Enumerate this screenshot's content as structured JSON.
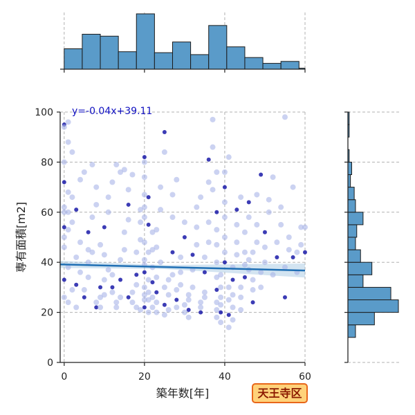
{
  "chart_data": {
    "type": "scatter",
    "title": "",
    "xlabel": "築年数[年]",
    "ylabel": "専有面積[m2]",
    "xlim": [
      -1,
      60
    ],
    "ylim": [
      0,
      100
    ],
    "xticks": [
      0,
      20,
      40,
      60
    ],
    "yticks": [
      0,
      20,
      40,
      60,
      80,
      100
    ],
    "grid": true,
    "regression": {
      "label": "y=-0.04x+39.11",
      "slope": -0.04,
      "intercept": 39.11
    },
    "badge": "天王寺区",
    "colors": {
      "points_light": "#a9b4e8",
      "points_dark": "#1a1aa8",
      "line": "#1f6fb4",
      "band": "#9ec4e0",
      "hist": "#5a9bc9",
      "badge_fill": "#ffd27a",
      "badge_border": "#e8661a"
    },
    "x_histogram": {
      "bin_edges": [
        0,
        4.5,
        9,
        13.5,
        18,
        22.5,
        27,
        31.5,
        36,
        40.5,
        45,
        49.5,
        54,
        58.5,
        60
      ],
      "counts": [
        21,
        36,
        34,
        18,
        57,
        17,
        28,
        15,
        45,
        23,
        12,
        6,
        8,
        1
      ]
    },
    "y_histogram": {
      "bin_edges": [
        10,
        15,
        20,
        25,
        30,
        35,
        40,
        45,
        50,
        55,
        60,
        65,
        70,
        75,
        80,
        85,
        90,
        95,
        100
      ],
      "counts": [
        6,
        21,
        40,
        34,
        12,
        19,
        10,
        6,
        7,
        12,
        6,
        5,
        2,
        3,
        1,
        0,
        1,
        1
      ]
    },
    "points": [
      [
        0,
        95
      ],
      [
        1,
        96
      ],
      [
        0,
        94
      ],
      [
        1,
        88
      ],
      [
        0,
        80
      ],
      [
        0,
        72
      ],
      [
        1,
        68
      ],
      [
        0,
        62
      ],
      [
        0,
        60
      ],
      [
        1,
        60
      ],
      [
        0,
        54
      ],
      [
        1,
        53
      ],
      [
        0,
        50
      ],
      [
        0,
        46
      ],
      [
        1,
        38
      ],
      [
        0,
        33
      ],
      [
        0,
        26
      ],
      [
        1,
        24
      ],
      [
        3,
        22
      ],
      [
        2,
        29
      ],
      [
        3,
        31
      ],
      [
        4,
        36
      ],
      [
        3,
        42
      ],
      [
        4,
        48
      ],
      [
        2,
        56
      ],
      [
        3,
        61
      ],
      [
        2,
        66
      ],
      [
        4,
        73
      ],
      [
        5,
        76
      ],
      [
        2,
        84
      ],
      [
        5,
        26
      ],
      [
        5,
        29
      ],
      [
        6,
        34
      ],
      [
        6,
        40
      ],
      [
        7,
        44
      ],
      [
        6,
        52
      ],
      [
        7,
        58
      ],
      [
        8,
        63
      ],
      [
        8,
        70
      ],
      [
        7,
        79
      ],
      [
        8,
        22
      ],
      [
        8,
        24
      ],
      [
        9,
        22
      ],
      [
        9,
        26
      ],
      [
        10,
        27
      ],
      [
        9,
        30
      ],
      [
        10,
        33
      ],
      [
        11,
        37
      ],
      [
        10,
        43
      ],
      [
        9,
        47
      ],
      [
        10,
        54
      ],
      [
        11,
        60
      ],
      [
        11,
        66
      ],
      [
        12,
        72
      ],
      [
        13,
        79
      ],
      [
        12,
        30
      ],
      [
        12,
        28
      ],
      [
        13,
        24
      ],
      [
        13,
        22
      ],
      [
        14,
        26
      ],
      [
        14,
        33
      ],
      [
        14,
        41
      ],
      [
        15,
        45
      ],
      [
        15,
        52
      ],
      [
        16,
        57
      ],
      [
        16,
        63
      ],
      [
        16,
        69
      ],
      [
        17,
        75
      ],
      [
        15,
        77
      ],
      [
        14,
        76
      ],
      [
        16,
        26
      ],
      [
        17,
        28
      ],
      [
        18,
        31
      ],
      [
        17,
        24
      ],
      [
        18,
        22
      ],
      [
        18,
        35
      ],
      [
        18,
        44
      ],
      [
        19,
        49
      ],
      [
        19,
        56
      ],
      [
        19,
        61
      ],
      [
        20,
        82
      ],
      [
        20,
        80
      ],
      [
        20,
        74
      ],
      [
        20,
        67
      ],
      [
        20,
        62
      ],
      [
        21,
        55
      ],
      [
        20,
        48
      ],
      [
        21,
        44
      ],
      [
        20,
        41
      ],
      [
        20,
        39
      ],
      [
        20,
        36
      ],
      [
        21,
        33
      ],
      [
        20,
        30
      ],
      [
        20,
        27
      ],
      [
        21,
        25
      ],
      [
        20,
        22
      ],
      [
        19,
        21
      ],
      [
        21,
        20
      ],
      [
        20,
        25
      ],
      [
        21,
        28
      ],
      [
        21,
        66
      ],
      [
        20,
        58
      ],
      [
        22,
        52
      ],
      [
        22,
        45
      ],
      [
        22,
        38
      ],
      [
        22,
        32
      ],
      [
        22,
        26
      ],
      [
        22,
        22
      ],
      [
        23,
        20
      ],
      [
        23,
        24
      ],
      [
        23,
        28
      ],
      [
        23,
        34
      ],
      [
        23,
        46
      ],
      [
        23,
        53
      ],
      [
        24,
        61
      ],
      [
        25,
        92
      ],
      [
        25,
        84
      ],
      [
        24,
        70
      ],
      [
        24,
        40
      ],
      [
        25,
        30
      ],
      [
        25,
        23
      ],
      [
        25,
        19
      ],
      [
        26,
        21
      ],
      [
        26,
        27
      ],
      [
        26,
        33
      ],
      [
        27,
        44
      ],
      [
        27,
        58
      ],
      [
        27,
        67
      ],
      [
        28,
        73
      ],
      [
        28,
        22
      ],
      [
        28,
        25
      ],
      [
        28,
        29
      ],
      [
        29,
        31
      ],
      [
        29,
        36
      ],
      [
        29,
        42
      ],
      [
        30,
        50
      ],
      [
        30,
        56
      ],
      [
        30,
        20
      ],
      [
        30,
        23
      ],
      [
        31,
        18
      ],
      [
        31,
        21
      ],
      [
        31,
        25
      ],
      [
        31,
        27
      ],
      [
        32,
        30
      ],
      [
        32,
        37
      ],
      [
        32,
        43
      ],
      [
        33,
        47
      ],
      [
        33,
        54
      ],
      [
        33,
        62
      ],
      [
        34,
        66
      ],
      [
        34,
        20
      ],
      [
        34,
        22
      ],
      [
        34,
        24
      ],
      [
        35,
        26
      ],
      [
        35,
        28
      ],
      [
        35,
        36
      ],
      [
        35,
        42
      ],
      [
        36,
        48
      ],
      [
        36,
        56
      ],
      [
        36,
        72
      ],
      [
        36,
        81
      ],
      [
        37,
        97
      ],
      [
        37,
        86
      ],
      [
        38,
        76
      ],
      [
        37,
        69
      ],
      [
        38,
        60
      ],
      [
        38,
        53
      ],
      [
        38,
        47
      ],
      [
        38,
        40
      ],
      [
        38,
        34
      ],
      [
        38,
        29
      ],
      [
        38,
        24
      ],
      [
        38,
        21
      ],
      [
        38,
        18
      ],
      [
        39,
        16
      ],
      [
        39,
        20
      ],
      [
        39,
        23
      ],
      [
        39,
        26
      ],
      [
        39,
        30
      ],
      [
        39,
        35
      ],
      [
        40,
        40
      ],
      [
        40,
        44
      ],
      [
        40,
        50
      ],
      [
        40,
        58
      ],
      [
        40,
        64
      ],
      [
        40,
        70
      ],
      [
        40,
        76
      ],
      [
        41,
        82
      ],
      [
        41,
        30
      ],
      [
        41,
        25
      ],
      [
        41,
        19
      ],
      [
        41,
        14
      ],
      [
        42,
        17
      ],
      [
        42,
        22
      ],
      [
        42,
        27
      ],
      [
        42,
        33
      ],
      [
        42,
        38
      ],
      [
        43,
        43
      ],
      [
        43,
        48
      ],
      [
        43,
        55
      ],
      [
        43,
        61
      ],
      [
        44,
        66
      ],
      [
        44,
        21
      ],
      [
        44,
        26
      ],
      [
        44,
        30
      ],
      [
        45,
        34
      ],
      [
        45,
        39
      ],
      [
        45,
        44
      ],
      [
        45,
        52
      ],
      [
        46,
        58
      ],
      [
        46,
        64
      ],
      [
        46,
        41
      ],
      [
        46,
        37
      ],
      [
        47,
        33
      ],
      [
        47,
        29
      ],
      [
        47,
        24
      ],
      [
        47,
        44
      ],
      [
        48,
        48
      ],
      [
        48,
        55
      ],
      [
        48,
        67
      ],
      [
        49,
        75
      ],
      [
        49,
        30
      ],
      [
        49,
        36
      ],
      [
        50,
        40
      ],
      [
        50,
        46
      ],
      [
        50,
        52
      ],
      [
        51,
        60
      ],
      [
        51,
        65
      ],
      [
        52,
        74
      ],
      [
        52,
        35
      ],
      [
        53,
        42
      ],
      [
        53,
        48
      ],
      [
        54,
        55
      ],
      [
        54,
        62
      ],
      [
        55,
        98
      ],
      [
        55,
        26
      ],
      [
        55,
        38
      ],
      [
        56,
        45
      ],
      [
        56,
        50
      ],
      [
        57,
        70
      ],
      [
        57,
        42
      ],
      [
        58,
        36
      ],
      [
        58,
        44
      ],
      [
        59,
        54
      ],
      [
        59,
        47
      ],
      [
        60,
        44
      ],
      [
        60,
        54
      ],
      [
        12,
        35
      ],
      [
        6,
        45
      ],
      [
        27,
        35
      ]
    ]
  }
}
